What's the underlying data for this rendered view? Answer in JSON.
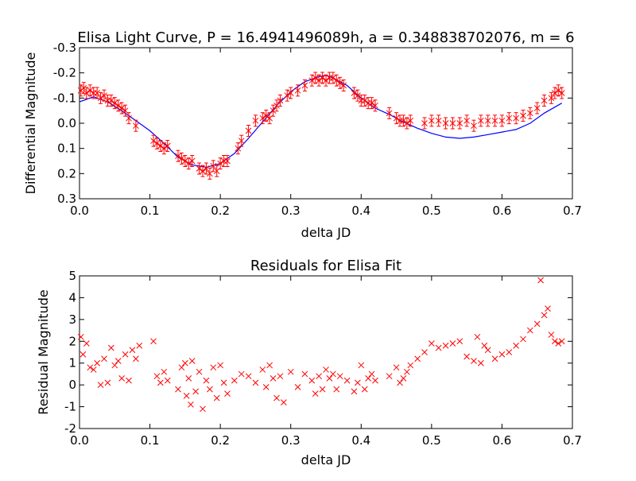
{
  "colors": {
    "model": "#0000ff",
    "data": "#ff0000",
    "axes": "#000000",
    "background": "#ffffff"
  },
  "chart_data": [
    {
      "type": "line",
      "title": "Elisa Light Curve,  P = 16.4941496089h, a = 0.348838702076, m = 6",
      "xlabel": "delta JD",
      "ylabel": "Differential Magnitude",
      "xlim": [
        0.0,
        0.7
      ],
      "ylim": [
        0.3,
        -0.3
      ],
      "y_inverted": true,
      "xticks": [
        "0.0",
        "0.1",
        "0.2",
        "0.3",
        "0.4",
        "0.5",
        "0.6",
        "0.7"
      ],
      "yticks": [
        "-0.3",
        "-0.2",
        "-0.1",
        "0.0",
        "0.1",
        "0.2",
        "0.3"
      ],
      "grid": false,
      "series": [
        {
          "marker": "line",
          "color": "#0000ff",
          "x": [
            0.0,
            0.02,
            0.04,
            0.06,
            0.08,
            0.1,
            0.12,
            0.14,
            0.16,
            0.18,
            0.2,
            0.22,
            0.24,
            0.26,
            0.28,
            0.3,
            0.32,
            0.34,
            0.35,
            0.36,
            0.38,
            0.4,
            0.42,
            0.44,
            0.46,
            0.48,
            0.5,
            0.52,
            0.54,
            0.56,
            0.58,
            0.6,
            0.62,
            0.64,
            0.66,
            0.685
          ],
          "y": [
            -0.085,
            -0.105,
            -0.085,
            -0.05,
            -0.01,
            0.03,
            0.08,
            0.135,
            0.165,
            0.175,
            0.16,
            0.12,
            0.06,
            -0.005,
            -0.07,
            -0.125,
            -0.165,
            -0.185,
            -0.19,
            -0.18,
            -0.15,
            -0.1,
            -0.06,
            -0.035,
            -0.005,
            0.02,
            0.04,
            0.055,
            0.06,
            0.055,
            0.045,
            0.035,
            0.025,
            0.0,
            -0.04,
            -0.08
          ]
        },
        {
          "marker": "x-errorbar",
          "color": "#ff0000",
          "x": [
            0.002,
            0.006,
            0.01,
            0.015,
            0.02,
            0.025,
            0.03,
            0.035,
            0.04,
            0.045,
            0.05,
            0.055,
            0.06,
            0.065,
            0.07,
            0.08,
            0.105,
            0.11,
            0.115,
            0.12,
            0.125,
            0.14,
            0.145,
            0.15,
            0.155,
            0.16,
            0.17,
            0.175,
            0.18,
            0.185,
            0.19,
            0.195,
            0.2,
            0.205,
            0.21,
            0.225,
            0.23,
            0.24,
            0.25,
            0.26,
            0.265,
            0.27,
            0.275,
            0.28,
            0.285,
            0.295,
            0.3,
            0.31,
            0.32,
            0.33,
            0.335,
            0.34,
            0.345,
            0.35,
            0.355,
            0.36,
            0.365,
            0.37,
            0.375,
            0.39,
            0.395,
            0.4,
            0.405,
            0.41,
            0.415,
            0.42,
            0.44,
            0.45,
            0.455,
            0.46,
            0.465,
            0.47,
            0.49,
            0.5,
            0.51,
            0.52,
            0.53,
            0.54,
            0.55,
            0.56,
            0.57,
            0.58,
            0.59,
            0.6,
            0.61,
            0.62,
            0.63,
            0.64,
            0.65,
            0.66,
            0.67,
            0.675,
            0.68,
            0.685
          ],
          "y": [
            -0.13,
            -0.14,
            -0.12,
            -0.13,
            -0.12,
            -0.12,
            -0.1,
            -0.11,
            -0.09,
            -0.09,
            -0.08,
            -0.07,
            -0.06,
            -0.05,
            -0.02,
            0.01,
            0.07,
            0.08,
            0.09,
            0.1,
            0.09,
            0.13,
            0.14,
            0.15,
            0.16,
            0.15,
            0.18,
            0.19,
            0.18,
            0.2,
            0.17,
            0.19,
            0.16,
            0.15,
            0.15,
            0.1,
            0.07,
            0.03,
            -0.01,
            -0.02,
            -0.03,
            -0.02,
            -0.05,
            -0.07,
            -0.09,
            -0.11,
            -0.12,
            -0.13,
            -0.15,
            -0.17,
            -0.18,
            -0.17,
            -0.18,
            -0.17,
            -0.18,
            -0.18,
            -0.17,
            -0.16,
            -0.15,
            -0.12,
            -0.11,
            -0.09,
            -0.09,
            -0.08,
            -0.08,
            -0.07,
            -0.04,
            -0.02,
            -0.01,
            -0.01,
            0.0,
            -0.01,
            0.0,
            -0.01,
            -0.01,
            0.0,
            0.0,
            0.0,
            -0.01,
            0.01,
            -0.01,
            -0.01,
            -0.01,
            -0.01,
            -0.02,
            -0.02,
            -0.03,
            -0.04,
            -0.06,
            -0.09,
            -0.1,
            -0.12,
            -0.13,
            -0.12
          ]
        }
      ]
    },
    {
      "type": "scatter",
      "title": "Residuals for Elisa Fit",
      "xlabel": "delta JD",
      "ylabel": "Residual Magnitude",
      "xlim": [
        0.0,
        0.7
      ],
      "ylim": [
        -2,
        5
      ],
      "xticks": [
        "0.0",
        "0.1",
        "0.2",
        "0.3",
        "0.4",
        "0.5",
        "0.6",
        "0.7"
      ],
      "yticks": [
        "-2",
        "-1",
        "0",
        "1",
        "2",
        "3",
        "4",
        "5"
      ],
      "grid": false,
      "series": [
        {
          "marker": "x",
          "color": "#ff0000",
          "x": [
            0.002,
            0.005,
            0.01,
            0.015,
            0.02,
            0.025,
            0.03,
            0.035,
            0.04,
            0.045,
            0.05,
            0.055,
            0.06,
            0.065,
            0.07,
            0.075,
            0.08,
            0.085,
            0.105,
            0.11,
            0.115,
            0.12,
            0.125,
            0.14,
            0.145,
            0.15,
            0.152,
            0.155,
            0.158,
            0.16,
            0.165,
            0.17,
            0.175,
            0.18,
            0.185,
            0.19,
            0.195,
            0.2,
            0.205,
            0.21,
            0.22,
            0.23,
            0.24,
            0.25,
            0.26,
            0.265,
            0.27,
            0.275,
            0.28,
            0.285,
            0.29,
            0.3,
            0.31,
            0.32,
            0.33,
            0.335,
            0.34,
            0.345,
            0.35,
            0.355,
            0.36,
            0.365,
            0.37,
            0.38,
            0.39,
            0.395,
            0.4,
            0.405,
            0.41,
            0.415,
            0.42,
            0.44,
            0.45,
            0.455,
            0.46,
            0.465,
            0.47,
            0.48,
            0.49,
            0.5,
            0.51,
            0.52,
            0.53,
            0.54,
            0.55,
            0.56,
            0.565,
            0.57,
            0.575,
            0.58,
            0.59,
            0.6,
            0.61,
            0.62,
            0.63,
            0.64,
            0.65,
            0.655,
            0.66,
            0.665,
            0.67,
            0.675,
            0.68,
            0.685
          ],
          "y": [
            2.2,
            1.4,
            1.9,
            0.8,
            0.7,
            1.0,
            0.0,
            1.2,
            0.1,
            1.7,
            0.9,
            1.1,
            0.3,
            1.4,
            0.2,
            1.6,
            1.2,
            1.8,
            2.0,
            0.4,
            0.1,
            0.6,
            0.2,
            -0.2,
            0.8,
            1.0,
            -0.5,
            0.3,
            -0.9,
            1.1,
            -0.3,
            0.6,
            -1.1,
            0.2,
            -0.2,
            0.8,
            -0.6,
            0.9,
            0.1,
            -0.4,
            0.2,
            0.5,
            0.4,
            0.1,
            0.7,
            -0.1,
            0.9,
            0.3,
            -0.6,
            0.4,
            -0.8,
            0.6,
            -0.1,
            0.5,
            0.2,
            -0.4,
            0.4,
            -0.2,
            0.7,
            0.3,
            0.5,
            -0.2,
            0.4,
            0.2,
            -0.3,
            0.1,
            0.9,
            -0.2,
            0.3,
            0.5,
            0.2,
            0.4,
            0.8,
            0.1,
            0.3,
            0.6,
            0.9,
            1.2,
            1.5,
            1.9,
            1.7,
            1.8,
            1.9,
            2.0,
            1.3,
            1.1,
            2.2,
            1.0,
            1.8,
            1.6,
            1.2,
            1.4,
            1.5,
            1.8,
            2.1,
            2.5,
            2.8,
            4.8,
            3.2,
            3.5,
            2.3,
            2.0,
            1.9,
            2.0
          ]
        }
      ]
    }
  ]
}
